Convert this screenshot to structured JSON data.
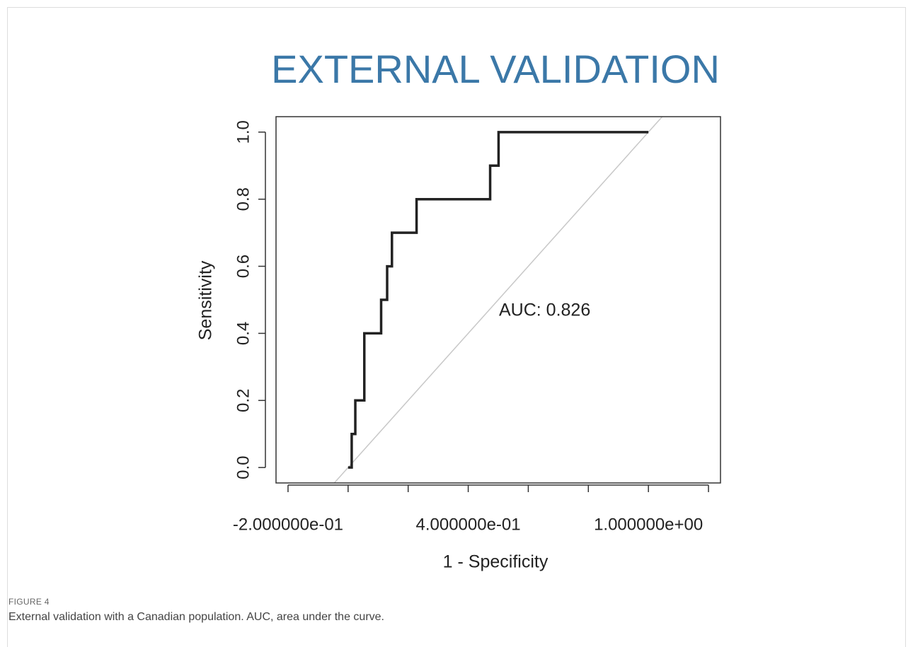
{
  "figure_label": "FIGURE 4",
  "caption": "External validation with a Canadian population. AUC, area under the curve.",
  "chart_data": {
    "type": "line",
    "title": "EXTERNAL VALIDATION",
    "title_color": "#3b78a8",
    "x_label": "1 - Specificity",
    "y_label": "Sensitivity",
    "annotation": "AUC: 0.826",
    "x": [
      0.0,
      0.012,
      0.012,
      0.024,
      0.024,
      0.054,
      0.054,
      0.11,
      0.11,
      0.13,
      0.13,
      0.146,
      0.146,
      0.228,
      0.228,
      0.473,
      0.473,
      0.501,
      0.501,
      1.0
    ],
    "values": [
      0,
      0,
      0.1,
      0.1,
      0.2,
      0.2,
      0.4,
      0.4,
      0.5,
      0.5,
      0.6,
      0.6,
      0.7,
      0.7,
      0.8,
      0.8,
      0.9,
      0.9,
      1.0,
      1.0
    ],
    "color": "#222222",
    "reference_line": {
      "slope": 1,
      "intercept": 0,
      "color": "#c8c8c8"
    },
    "xlim": [
      -0.24,
      1.24
    ],
    "ylim": [
      -0.046,
      1.046
    ],
    "xticks": [
      {
        "value": -0.2,
        "label": "-2.000000e-01"
      },
      {
        "value": 0.4,
        "label": "4.000000e-01"
      },
      {
        "value": 1.0,
        "label": "1.000000e+00"
      }
    ],
    "xticks_unlabeled": [
      0,
      0.2,
      0.6,
      0.8,
      1.2
    ],
    "yticks": [
      {
        "value": 0,
        "label": "0.0"
      },
      {
        "value": 0.2,
        "label": "0.2"
      },
      {
        "value": 0.4,
        "label": "0.4"
      },
      {
        "value": 0.6,
        "label": "0.6"
      },
      {
        "value": 0.8,
        "label": "0.8"
      },
      {
        "value": 1.0,
        "label": "1.0"
      }
    ],
    "grid": false
  }
}
